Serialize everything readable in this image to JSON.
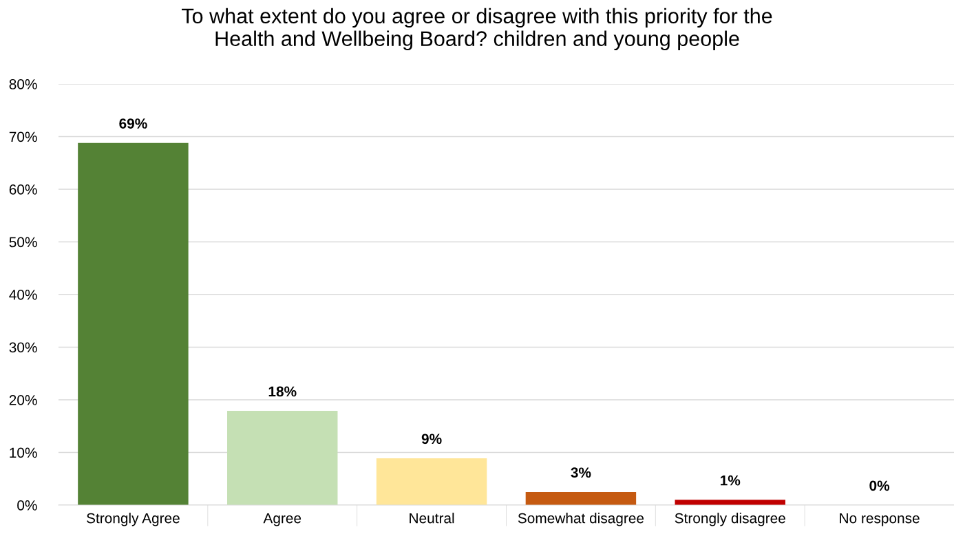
{
  "chart_data": {
    "type": "bar",
    "title": "To what extent do you agree or disagree with this priority for the\nHealth and Wellbeing Board? children and young people",
    "categories": [
      "Strongly Agree",
      "Agree",
      "Neutral",
      "Somewhat disagree",
      "Strongly disagree",
      "No response"
    ],
    "values": [
      68.8,
      17.9,
      8.9,
      2.5,
      1.0,
      0
    ],
    "colors": [
      "#548235",
      "#c5e0b4",
      "#ffe699",
      "#c55a11",
      "#c00000",
      "#7f7f7f"
    ],
    "value_labels": [
      "69%",
      "18%",
      "9%",
      "3%",
      "1%",
      "0%"
    ],
    "ylim": [
      0,
      80
    ],
    "yticks": [
      {
        "value": 0,
        "label": "0%"
      },
      {
        "value": 10,
        "label": "10%"
      },
      {
        "value": 20,
        "label": "20%"
      },
      {
        "value": 30,
        "label": "30%"
      },
      {
        "value": 40,
        "label": "40%"
      },
      {
        "value": 50,
        "label": "50%"
      },
      {
        "value": 60,
        "label": "60%"
      },
      {
        "value": 70,
        "label": "70%"
      },
      {
        "value": 80,
        "label": "80%"
      }
    ],
    "grid": "y",
    "legend": false
  }
}
